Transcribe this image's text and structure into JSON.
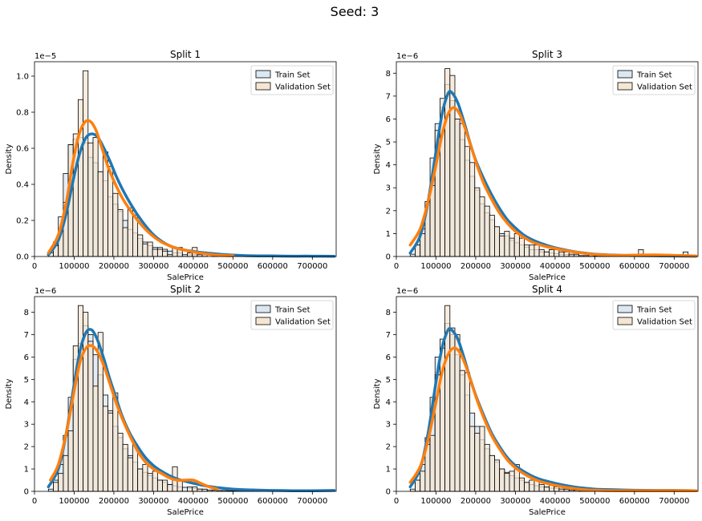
{
  "figure": {
    "suptitle": "Seed: 3"
  },
  "colors": {
    "train_fill": "#dbe7f1",
    "val_fill": "#f5e6d3",
    "train_line": "#1f77b4",
    "val_line": "#ff7f0e",
    "edge": "#000000"
  },
  "chart_data": [
    {
      "type": "histogram",
      "title": "Split 1",
      "xlabel": "SalePrice",
      "ylabel": "Density",
      "exponent_label": "1e−5",
      "y_scale": 1e-05,
      "xlim": [
        0,
        760000
      ],
      "ylim": [
        0,
        1.08
      ],
      "xticks": [
        0,
        100000,
        200000,
        300000,
        400000,
        500000,
        600000,
        700000
      ],
      "yticks": [
        0.0,
        0.2,
        0.4,
        0.6,
        0.8,
        1.0
      ],
      "ytick_labels": [
        "0.0",
        "0.2",
        "0.4",
        "0.6",
        "0.8",
        "1.0"
      ],
      "legend": [
        "Train Set",
        "Validation Set"
      ],
      "legend_loc": "upper right",
      "bin_start": 35000,
      "bin_width": 12500,
      "train_hist": [
        0.02,
        0.08,
        0.22,
        0.46,
        0.62,
        0.65,
        0.66,
        0.63,
        0.55,
        0.52,
        0.47,
        0.42,
        0.33,
        0.29,
        0.25,
        0.2,
        0.15,
        0.13,
        0.1,
        0.08,
        0.06,
        0.05,
        0.05,
        0.04,
        0.03,
        0.02,
        0.02,
        0.01,
        0.01,
        0.01,
        0.01,
        0.01,
        0.0,
        0.01,
        0.0,
        0.0,
        0.0,
        0.0,
        0.0,
        0.0,
        0.0,
        0.0,
        0.0,
        0.0,
        0.0,
        0.0,
        0.0,
        0.0,
        0.0,
        0.0,
        0.0,
        0.0,
        0.0,
        0.0,
        0.0,
        0.0,
        0.0,
        0.0
      ],
      "val_hist": [
        0.0,
        0.06,
        0.14,
        0.3,
        0.62,
        0.68,
        0.87,
        1.03,
        0.63,
        0.66,
        0.47,
        0.58,
        0.5,
        0.35,
        0.26,
        0.16,
        0.27,
        0.23,
        0.12,
        0.07,
        0.08,
        0.04,
        0.04,
        0.03,
        0.01,
        0.05,
        0.05,
        0.0,
        0.02,
        0.05,
        0.0,
        0.0,
        0.0,
        0.0,
        0.0,
        0.0,
        0.0,
        0.0,
        0.0,
        0.0,
        0.0,
        0.0,
        0.0,
        0.0,
        0.0,
        0.0,
        0.0,
        0.0,
        0.0,
        0.0,
        0.0,
        0.0,
        0.0,
        0.0,
        0.0,
        0.0,
        0.0,
        0.0
      ],
      "train_kde": {
        "x": [
          35000,
          60000,
          80000,
          100000,
          115000,
          130000,
          145000,
          160000,
          175000,
          190000,
          205000,
          220000,
          240000,
          260000,
          280000,
          300000,
          320000,
          340000,
          360000,
          380000,
          400000,
          430000,
          460000,
          500000,
          550000,
          600000,
          650000,
          700000,
          755000
        ],
        "y": [
          0.01,
          0.09,
          0.24,
          0.45,
          0.58,
          0.66,
          0.68,
          0.66,
          0.6,
          0.53,
          0.45,
          0.38,
          0.3,
          0.23,
          0.17,
          0.12,
          0.085,
          0.06,
          0.045,
          0.035,
          0.028,
          0.02,
          0.014,
          0.008,
          0.004,
          0.003,
          0.002,
          0.002,
          0.001
        ]
      },
      "val_kde": {
        "x": [
          35000,
          60000,
          80000,
          95000,
          110000,
          125000,
          140000,
          155000,
          170000,
          185000,
          200000,
          220000,
          240000,
          260000,
          280000,
          300000,
          320000,
          340000,
          360000,
          380000,
          400000,
          430000,
          460000,
          500000
        ],
        "y": [
          0.02,
          0.12,
          0.3,
          0.5,
          0.66,
          0.74,
          0.75,
          0.7,
          0.6,
          0.5,
          0.42,
          0.33,
          0.26,
          0.2,
          0.15,
          0.11,
          0.08,
          0.06,
          0.045,
          0.035,
          0.025,
          0.015,
          0.008,
          0.004
        ]
      }
    },
    {
      "type": "histogram",
      "title": "Split 3",
      "xlabel": "SalePrice",
      "ylabel": "Density",
      "exponent_label": "1e−6",
      "y_scale": 1e-06,
      "xlim": [
        0,
        760000
      ],
      "ylim": [
        0,
        8.5
      ],
      "xticks": [
        0,
        100000,
        200000,
        300000,
        400000,
        500000,
        600000,
        700000
      ],
      "yticks": [
        0,
        1,
        2,
        3,
        4,
        5,
        6,
        7,
        8
      ],
      "ytick_labels": [
        "0",
        "1",
        "2",
        "3",
        "4",
        "5",
        "6",
        "7",
        "8"
      ],
      "legend": [
        "Train Set",
        "Validation Set"
      ],
      "legend_loc": "upper right",
      "bin_start": 35000,
      "bin_width": 12500,
      "train_hist": [
        0.1,
        0.5,
        1.2,
        2.4,
        4.3,
        5.8,
        6.5,
        7.5,
        6.8,
        6.0,
        5.1,
        4.2,
        3.5,
        2.9,
        2.3,
        1.9,
        1.6,
        1.3,
        1.0,
        0.9,
        0.7,
        0.6,
        0.5,
        0.4,
        0.3,
        0.3,
        0.2,
        0.2,
        0.15,
        0.12,
        0.1,
        0.08,
        0.06,
        0.05,
        0.04,
        0.04,
        0.03,
        0.03,
        0.02,
        0.02,
        0.02,
        0.02,
        0.02,
        0.01,
        0.01,
        0.01,
        0.01,
        0.01,
        0.01,
        0.01,
        0.01,
        0.01,
        0.01,
        0.0,
        0.0,
        0.0,
        0.0,
        0.0
      ],
      "val_hist": [
        0.0,
        0.5,
        1.0,
        2.4,
        3.1,
        5.5,
        6.9,
        8.2,
        7.9,
        6.0,
        5.8,
        4.8,
        4.1,
        3.0,
        2.6,
        2.2,
        1.8,
        1.3,
        0.9,
        1.1,
        0.8,
        1.0,
        0.8,
        0.5,
        0.5,
        0.5,
        0.3,
        0.2,
        0.3,
        0.3,
        0.2,
        0.2,
        0.1,
        0.1,
        0.0,
        0.0,
        0.1,
        0.0,
        0.0,
        0.0,
        0.0,
        0.0,
        0.0,
        0.0,
        0.0,
        0.0,
        0.3,
        0.0,
        0.0,
        0.0,
        0.0,
        0.0,
        0.0,
        0.0,
        0.0,
        0.2,
        0.0,
        0.0
      ],
      "train_kde": {
        "x": [
          35000,
          60000,
          80000,
          100000,
          115000,
          130000,
          140000,
          155000,
          170000,
          185000,
          200000,
          220000,
          240000,
          260000,
          280000,
          300000,
          320000,
          340000,
          360000,
          380000,
          400000,
          430000,
          460000,
          500000,
          550000,
          600000,
          650000,
          700000,
          755000
        ],
        "y": [
          0.15,
          0.9,
          2.4,
          4.6,
          6.2,
          7.1,
          7.15,
          6.7,
          5.9,
          5.0,
          4.2,
          3.4,
          2.7,
          2.1,
          1.6,
          1.25,
          0.95,
          0.75,
          0.6,
          0.48,
          0.38,
          0.27,
          0.18,
          0.1,
          0.06,
          0.04,
          0.03,
          0.02,
          0.01
        ]
      },
      "val_kde": {
        "x": [
          35000,
          60000,
          80000,
          100000,
          115000,
          130000,
          145000,
          160000,
          175000,
          190000,
          205000,
          220000,
          240000,
          260000,
          280000,
          300000,
          320000,
          340000,
          360000,
          380000,
          400000,
          430000,
          460000,
          500000,
          550000,
          600000,
          650000,
          700000,
          755000
        ],
        "y": [
          0.5,
          1.2,
          2.4,
          4.0,
          5.3,
          6.2,
          6.5,
          6.2,
          5.5,
          4.7,
          3.9,
          3.2,
          2.5,
          1.9,
          1.45,
          1.1,
          0.85,
          0.65,
          0.52,
          0.42,
          0.35,
          0.25,
          0.17,
          0.09,
          0.05,
          0.06,
          0.07,
          0.05,
          0.02
        ]
      }
    },
    {
      "type": "histogram",
      "title": "Split 2",
      "xlabel": "SalePrice",
      "ylabel": "Density",
      "exponent_label": "1e−6",
      "y_scale": 1e-06,
      "xlim": [
        0,
        760000
      ],
      "ylim": [
        0,
        8.7
      ],
      "xticks": [
        0,
        100000,
        200000,
        300000,
        400000,
        500000,
        600000,
        700000
      ],
      "yticks": [
        0,
        1,
        2,
        3,
        4,
        5,
        6,
        7,
        8
      ],
      "ytick_labels": [
        "0",
        "1",
        "2",
        "3",
        "4",
        "5",
        "6",
        "7",
        "8"
      ],
      "legend": [
        "Train Set",
        "Validation Set"
      ],
      "legend_loc": "upper right",
      "bin_start": 35000,
      "bin_width": 12500,
      "train_hist": [
        0.1,
        0.5,
        1.2,
        2.5,
        4.2,
        5.9,
        6.6,
        7.4,
        7.0,
        6.1,
        5.2,
        4.3,
        3.6,
        2.9,
        2.4,
        1.9,
        1.6,
        1.3,
        1.0,
        0.85,
        0.7,
        0.6,
        0.5,
        0.4,
        0.3,
        0.25,
        0.2,
        0.18,
        0.14,
        0.12,
        0.1,
        0.08,
        0.06,
        0.05,
        0.04,
        0.04,
        0.03,
        0.03,
        0.02,
        0.02,
        0.02,
        0.02,
        0.02,
        0.01,
        0.01,
        0.01,
        0.01,
        0.01,
        0.01,
        0.01,
        0.01,
        0.01,
        0.01,
        0.0,
        0.0,
        0.0,
        0.0,
        0.0
      ],
      "val_hist": [
        0.0,
        0.4,
        0.8,
        1.6,
        2.7,
        6.5,
        8.3,
        8.0,
        6.7,
        4.7,
        7.1,
        3.8,
        3.5,
        4.4,
        2.6,
        2.1,
        1.5,
        2.1,
        1.0,
        1.2,
        0.8,
        0.9,
        0.5,
        0.5,
        0.3,
        1.1,
        0.5,
        0.0,
        0.2,
        0.2,
        0.1,
        0.1,
        0.0,
        0.0,
        0.0,
        0.0,
        0.0,
        0.0,
        0.0,
        0.0,
        0.0,
        0.0,
        0.0,
        0.0,
        0.0,
        0.0,
        0.0,
        0.0,
        0.0,
        0.0,
        0.0,
        0.0,
        0.0,
        0.0,
        0.0,
        0.0,
        0.0,
        0.0
      ],
      "train_kde": {
        "x": [
          35000,
          60000,
          80000,
          100000,
          115000,
          130000,
          145000,
          160000,
          175000,
          190000,
          205000,
          220000,
          240000,
          260000,
          280000,
          300000,
          320000,
          340000,
          360000,
          380000,
          400000,
          430000,
          460000,
          500000,
          550000,
          600000,
          650000,
          700000,
          755000
        ],
        "y": [
          0.2,
          1.0,
          2.6,
          4.8,
          6.3,
          7.1,
          7.2,
          6.7,
          5.9,
          5.0,
          4.2,
          3.4,
          2.6,
          2.0,
          1.5,
          1.15,
          0.9,
          0.7,
          0.55,
          0.45,
          0.36,
          0.25,
          0.17,
          0.1,
          0.06,
          0.04,
          0.03,
          0.03,
          0.04
        ]
      },
      "val_kde": {
        "x": [
          40000,
          60000,
          80000,
          100000,
          115000,
          130000,
          145000,
          160000,
          175000,
          190000,
          205000,
          220000,
          240000,
          260000,
          280000,
          300000,
          320000,
          340000,
          360000,
          380000,
          400000,
          420000,
          440000,
          460000
        ],
        "y": [
          0.5,
          1.2,
          2.6,
          4.5,
          5.8,
          6.4,
          6.5,
          6.2,
          5.6,
          4.8,
          4.0,
          3.3,
          2.5,
          1.8,
          1.3,
          1.0,
          0.8,
          0.6,
          0.5,
          0.5,
          0.5,
          0.35,
          0.2,
          0.1
        ]
      }
    },
    {
      "type": "histogram",
      "title": "Split 4",
      "xlabel": "SalePrice",
      "ylabel": "Density",
      "exponent_label": "1e−6",
      "y_scale": 1e-06,
      "xlim": [
        0,
        760000
      ],
      "ylim": [
        0,
        8.7
      ],
      "xticks": [
        0,
        100000,
        200000,
        300000,
        400000,
        500000,
        600000,
        700000
      ],
      "yticks": [
        0,
        1,
        2,
        3,
        4,
        5,
        6,
        7,
        8
      ],
      "ytick_labels": [
        "0",
        "1",
        "2",
        "3",
        "4",
        "5",
        "6",
        "7",
        "8"
      ],
      "legend": [
        "Train Set",
        "Validation Set"
      ],
      "legend_loc": "upper right",
      "bin_start": 35000,
      "bin_width": 12500,
      "train_hist": [
        0.1,
        0.5,
        1.2,
        2.4,
        4.2,
        6.0,
        6.8,
        7.5,
        7.0,
        6.1,
        5.2,
        4.3,
        3.5,
        2.9,
        2.3,
        1.9,
        1.6,
        1.3,
        1.0,
        0.85,
        0.7,
        0.6,
        0.5,
        0.4,
        0.3,
        0.25,
        0.2,
        0.18,
        0.14,
        0.12,
        0.1,
        0.08,
        0.06,
        0.05,
        0.04,
        0.04,
        0.03,
        0.03,
        0.02,
        0.02,
        0.02,
        0.02,
        0.02,
        0.01,
        0.01,
        0.01,
        0.01,
        0.01,
        0.01,
        0.01,
        0.01,
        0.01,
        0.01,
        0.0,
        0.0,
        0.0,
        0.0,
        0.0
      ],
      "val_hist": [
        0.0,
        0.5,
        0.9,
        2.1,
        2.5,
        5.2,
        6.4,
        8.3,
        7.3,
        7.0,
        5.4,
        5.3,
        2.9,
        2.6,
        2.9,
        2.1,
        1.6,
        1.4,
        1.0,
        0.8,
        0.9,
        1.2,
        0.6,
        0.4,
        0.5,
        0.5,
        0.3,
        0.2,
        0.3,
        0.2,
        0.1,
        0.1,
        0.0,
        0.0,
        0.0,
        0.0,
        0.0,
        0.0,
        0.0,
        0.0,
        0.0,
        0.0,
        0.0,
        0.0,
        0.0,
        0.0,
        0.0,
        0.0,
        0.0,
        0.0,
        0.0,
        0.0,
        0.0,
        0.0,
        0.0,
        0.0,
        0.0,
        0.0
      ],
      "train_kde": {
        "x": [
          35000,
          60000,
          80000,
          100000,
          115000,
          130000,
          140000,
          155000,
          170000,
          185000,
          200000,
          220000,
          240000,
          260000,
          280000,
          300000,
          320000,
          340000,
          360000,
          380000,
          400000,
          430000,
          460000,
          500000,
          550000,
          600000,
          650000,
          700000,
          755000
        ],
        "y": [
          0.2,
          1.0,
          2.6,
          4.9,
          6.4,
          7.2,
          7.2,
          6.8,
          6.0,
          5.1,
          4.3,
          3.4,
          2.6,
          2.0,
          1.5,
          1.15,
          0.9,
          0.7,
          0.55,
          0.45,
          0.36,
          0.25,
          0.17,
          0.1,
          0.07,
          0.05,
          0.04,
          0.04,
          0.03
        ]
      },
      "val_kde": {
        "x": [
          35000,
          60000,
          80000,
          100000,
          115000,
          130000,
          145000,
          160000,
          175000,
          190000,
          205000,
          220000,
          240000,
          260000,
          280000,
          300000,
          320000,
          340000,
          360000,
          380000,
          400000,
          430000,
          460000,
          500000,
          550000,
          600000,
          650000,
          700000,
          755000
        ],
        "y": [
          0.4,
          1.1,
          2.3,
          4.0,
          5.3,
          6.1,
          6.4,
          6.2,
          5.6,
          4.8,
          4.0,
          3.3,
          2.5,
          1.9,
          1.4,
          1.05,
          0.8,
          0.6,
          0.45,
          0.35,
          0.27,
          0.17,
          0.1,
          0.05,
          0.03,
          0.03,
          0.03,
          0.03,
          0.03
        ]
      }
    }
  ]
}
